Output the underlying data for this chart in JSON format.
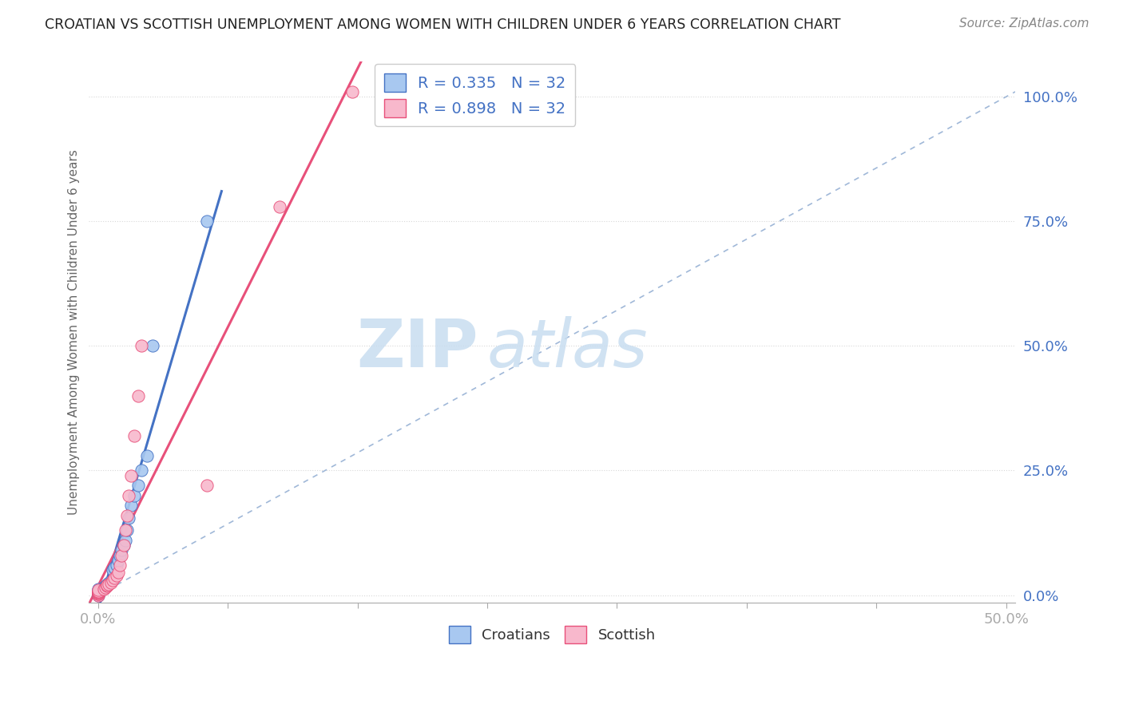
{
  "title": "CROATIAN VS SCOTTISH UNEMPLOYMENT AMONG WOMEN WITH CHILDREN UNDER 6 YEARS CORRELATION CHART",
  "source": "Source: ZipAtlas.com",
  "ylabel": "Unemployment Among Women with Children Under 6 years",
  "ytick_labels": [
    "0.0%",
    "25.0%",
    "50.0%",
    "75.0%",
    "100.0%"
  ],
  "ytick_values": [
    0.0,
    0.25,
    0.5,
    0.75,
    1.0
  ],
  "xtick_labels": [
    "0.0%",
    "",
    "",
    "",
    "",
    "",
    "",
    "50.0%"
  ],
  "xlim": [
    -0.005,
    0.505
  ],
  "ylim": [
    -0.015,
    1.07
  ],
  "legend_entry1": "R = 0.335   N = 32",
  "legend_entry2": "R = 0.898   N = 32",
  "legend_label1": "Croatians",
  "legend_label2": "Scottish",
  "croatian_color": "#a8c8f0",
  "scottish_color": "#f8b8cc",
  "croatian_line_color": "#4472c4",
  "scottish_line_color": "#e8507a",
  "diagonal_color": "#a0b8d8",
  "watermark_zip": "ZIP",
  "watermark_atlas": "atlas",
  "background_color": "#ffffff",
  "grid_color": "#d8d8d8",
  "grid_style": "dotted",
  "cr_x": [
    0.0,
    0.0,
    0.0,
    0.0,
    0.0,
    0.0,
    0.0,
    0.0,
    0.0,
    0.003,
    0.004,
    0.005,
    0.005,
    0.006,
    0.007,
    0.008,
    0.009,
    0.01,
    0.011,
    0.012,
    0.013,
    0.014,
    0.015,
    0.016,
    0.017,
    0.018,
    0.02,
    0.022,
    0.024,
    0.027,
    0.03,
    0.06
  ],
  "cr_y": [
    0.0,
    0.002,
    0.003,
    0.005,
    0.006,
    0.007,
    0.008,
    0.01,
    0.012,
    0.015,
    0.018,
    0.02,
    0.022,
    0.025,
    0.028,
    0.05,
    0.055,
    0.06,
    0.07,
    0.08,
    0.09,
    0.1,
    0.11,
    0.13,
    0.155,
    0.18,
    0.2,
    0.22,
    0.25,
    0.28,
    0.5,
    0.75
  ],
  "sc_x": [
    0.0,
    0.0,
    0.0,
    0.0,
    0.0,
    0.0,
    0.0,
    0.0,
    0.0,
    0.003,
    0.004,
    0.005,
    0.005,
    0.006,
    0.007,
    0.008,
    0.009,
    0.01,
    0.011,
    0.012,
    0.013,
    0.014,
    0.015,
    0.016,
    0.017,
    0.018,
    0.02,
    0.022,
    0.024,
    0.06,
    0.1,
    0.14
  ],
  "sc_y": [
    0.0,
    0.002,
    0.003,
    0.004,
    0.005,
    0.006,
    0.007,
    0.008,
    0.01,
    0.012,
    0.015,
    0.018,
    0.02,
    0.022,
    0.025,
    0.03,
    0.035,
    0.04,
    0.045,
    0.06,
    0.08,
    0.1,
    0.13,
    0.16,
    0.2,
    0.24,
    0.32,
    0.4,
    0.5,
    0.22,
    0.78,
    1.01
  ],
  "cr_line_x0": 0.0,
  "cr_line_x1": 0.065,
  "sc_line_x0": -0.005,
  "sc_line_x1": 0.175
}
